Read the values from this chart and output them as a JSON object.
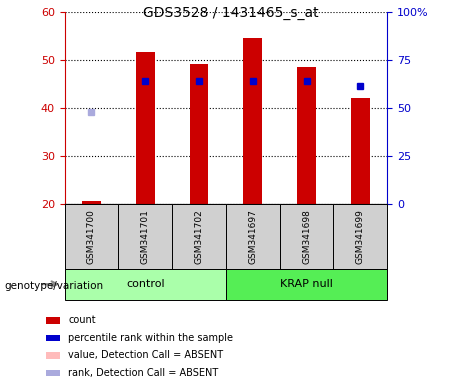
{
  "title": "GDS3528 / 1431465_s_at",
  "samples": [
    "GSM341700",
    "GSM341701",
    "GSM341702",
    "GSM341697",
    "GSM341698",
    "GSM341699"
  ],
  "red_values": [
    20.5,
    51.5,
    49.0,
    54.5,
    48.5,
    42.0
  ],
  "blue_values_left": [
    null,
    45.5,
    45.5,
    45.5,
    45.5,
    44.5
  ],
  "lavender_values_left": [
    39.0,
    null,
    null,
    null,
    null,
    null
  ],
  "red_base": 20.0,
  "ylim_left": [
    20,
    60
  ],
  "ylim_right": [
    0,
    100
  ],
  "yticks_left": [
    20,
    30,
    40,
    50,
    60
  ],
  "ytick_labels_left": [
    "20",
    "30",
    "40",
    "50",
    "60"
  ],
  "yticks_right": [
    0,
    25,
    50,
    75,
    100
  ],
  "ytick_labels_right": [
    "0",
    "25",
    "50",
    "75",
    "100%"
  ],
  "left_color": "#cc0000",
  "right_color": "#0000cc",
  "bar_width": 0.35,
  "sample_box_color": "#d0d0d0",
  "control_color": "#aaffaa",
  "krap_color": "#55ee55",
  "legend_labels": [
    "count",
    "percentile rank within the sample",
    "value, Detection Call = ABSENT",
    "rank, Detection Call = ABSENT"
  ],
  "legend_colors": [
    "#cc0000",
    "#0000cc",
    "#ffbbbb",
    "#aaaadd"
  ],
  "genotype_label": "genotype/variation",
  "group_info": [
    {
      "label": "control",
      "start": 0,
      "end": 2,
      "color": "#aaffaa"
    },
    {
      "label": "KRAP null",
      "start": 3,
      "end": 5,
      "color": "#55ee55"
    }
  ]
}
